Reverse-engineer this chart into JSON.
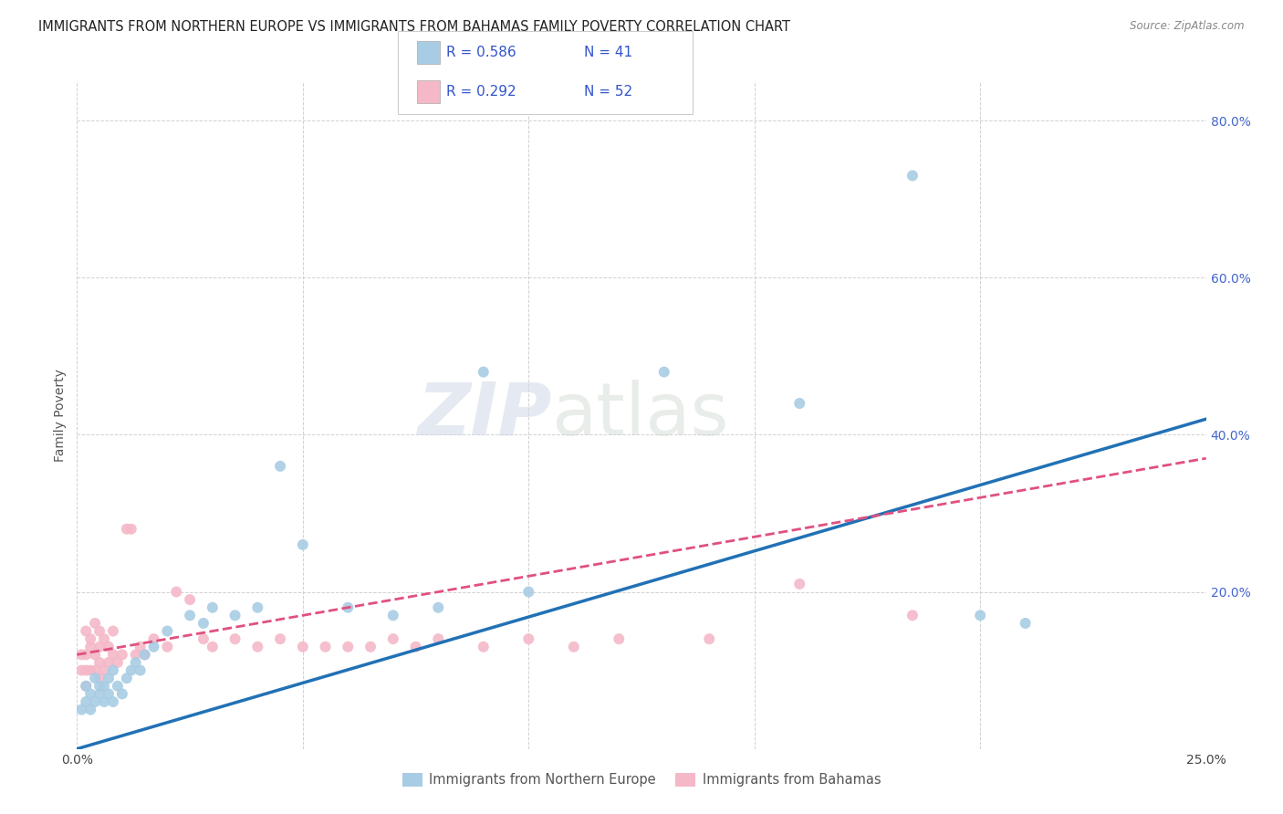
{
  "title": "IMMIGRANTS FROM NORTHERN EUROPE VS IMMIGRANTS FROM BAHAMAS FAMILY POVERTY CORRELATION CHART",
  "source": "Source: ZipAtlas.com",
  "ylabel": "Family Poverty",
  "xlim": [
    0.0,
    0.25
  ],
  "ylim": [
    0.0,
    0.85
  ],
  "x_tick_positions": [
    0.0,
    0.05,
    0.1,
    0.15,
    0.2,
    0.25
  ],
  "x_tick_labels": [
    "0.0%",
    "",
    "",
    "",
    "",
    "25.0%"
  ],
  "y_tick_positions": [
    0.0,
    0.2,
    0.4,
    0.6,
    0.8
  ],
  "y_tick_labels": [
    "",
    "20.0%",
    "40.0%",
    "60.0%",
    "80.0%"
  ],
  "color_blue": "#a8cce4",
  "color_pink": "#f4b8c8",
  "color_line_blue": "#2171b5",
  "color_line_pink": "#e05080",
  "watermark_zip": "ZIP",
  "watermark_atlas": "atlas",
  "grid_color": "#cccccc",
  "bg_color": "#ffffff",
  "title_fontsize": 10.5,
  "axis_label_fontsize": 10,
  "tick_fontsize": 10,
  "blue_slope": 1.68,
  "blue_intercept": 0.0,
  "pink_slope": 1.0,
  "pink_intercept": 0.12,
  "blue_x": [
    0.001,
    0.002,
    0.002,
    0.003,
    0.003,
    0.004,
    0.004,
    0.005,
    0.005,
    0.006,
    0.006,
    0.007,
    0.007,
    0.008,
    0.008,
    0.009,
    0.01,
    0.011,
    0.012,
    0.013,
    0.014,
    0.015,
    0.017,
    0.02,
    0.025,
    0.028,
    0.03,
    0.035,
    0.04,
    0.045,
    0.05,
    0.06,
    0.07,
    0.08,
    0.09,
    0.1,
    0.13,
    0.16,
    0.185,
    0.2,
    0.21
  ],
  "blue_y": [
    0.05,
    0.06,
    0.08,
    0.05,
    0.07,
    0.06,
    0.09,
    0.07,
    0.08,
    0.06,
    0.08,
    0.07,
    0.09,
    0.06,
    0.1,
    0.08,
    0.07,
    0.09,
    0.1,
    0.11,
    0.1,
    0.12,
    0.13,
    0.15,
    0.17,
    0.16,
    0.18,
    0.17,
    0.18,
    0.36,
    0.26,
    0.18,
    0.17,
    0.18,
    0.48,
    0.2,
    0.48,
    0.44,
    0.73,
    0.17,
    0.16
  ],
  "pink_x": [
    0.001,
    0.001,
    0.002,
    0.002,
    0.002,
    0.002,
    0.003,
    0.003,
    0.003,
    0.004,
    0.004,
    0.004,
    0.005,
    0.005,
    0.005,
    0.005,
    0.006,
    0.006,
    0.007,
    0.007,
    0.008,
    0.008,
    0.009,
    0.01,
    0.011,
    0.012,
    0.013,
    0.014,
    0.015,
    0.017,
    0.02,
    0.022,
    0.025,
    0.028,
    0.03,
    0.035,
    0.04,
    0.045,
    0.05,
    0.055,
    0.06,
    0.065,
    0.07,
    0.075,
    0.08,
    0.09,
    0.1,
    0.11,
    0.12,
    0.14,
    0.16,
    0.185
  ],
  "pink_y": [
    0.1,
    0.12,
    0.08,
    0.12,
    0.15,
    0.1,
    0.13,
    0.1,
    0.14,
    0.1,
    0.12,
    0.16,
    0.09,
    0.11,
    0.13,
    0.15,
    0.1,
    0.14,
    0.11,
    0.13,
    0.12,
    0.15,
    0.11,
    0.12,
    0.28,
    0.28,
    0.12,
    0.13,
    0.12,
    0.14,
    0.13,
    0.2,
    0.19,
    0.14,
    0.13,
    0.14,
    0.13,
    0.14,
    0.13,
    0.13,
    0.13,
    0.13,
    0.14,
    0.13,
    0.14,
    0.13,
    0.14,
    0.13,
    0.14,
    0.14,
    0.21,
    0.17
  ]
}
